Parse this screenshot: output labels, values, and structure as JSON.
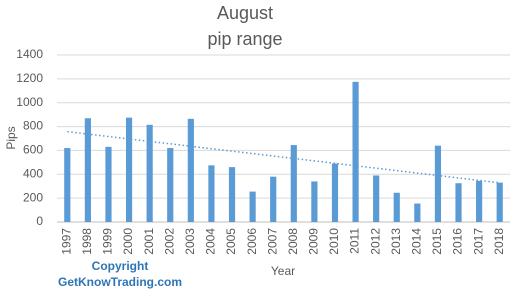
{
  "chart_data": {
    "type": "bar",
    "title": [
      "August",
      "pip range"
    ],
    "y_label": "Pips",
    "x_label": "Year",
    "annotations": [
      "Copyright",
      "GetKnowTrading.com"
    ],
    "categories": [
      "1997",
      "1998",
      "1999",
      "2000",
      "2001",
      "2002",
      "2003",
      "2004",
      "2005",
      "2006",
      "2007",
      "2008",
      "2009",
      "2010",
      "2011",
      "2012",
      "2013",
      "2014",
      "2015",
      "2016",
      "2017",
      "2018"
    ],
    "values": [
      620,
      870,
      630,
      875,
      815,
      620,
      865,
      475,
      460,
      255,
      380,
      645,
      340,
      490,
      1175,
      390,
      245,
      155,
      640,
      325,
      345,
      330
    ],
    "color": "#5b9bd5",
    "trendline": "linear",
    "trendline_color": "#5b9bd5",
    "ylim": [
      0,
      1400
    ],
    "yticks": [
      0,
      200,
      400,
      600,
      800,
      1000,
      1200,
      1400
    ],
    "grid": true
  }
}
